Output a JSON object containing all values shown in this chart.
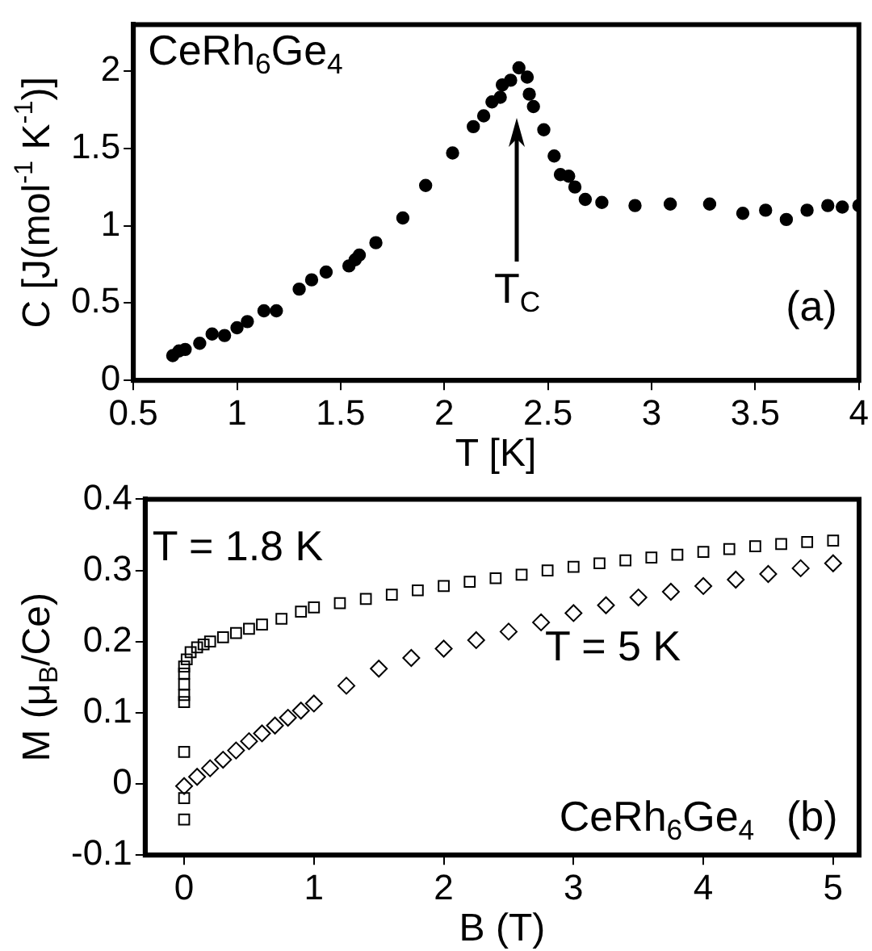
{
  "chart_data": [
    {
      "type": "scatter",
      "xlabel": "T [K]",
      "ylabel": "C [J(mol$^{-1}$ K$^{-1}$)]",
      "xlim": [
        0.5,
        4
      ],
      "xticks": [
        0.5,
        1,
        1.5,
        2,
        2.5,
        3,
        3.5,
        4
      ],
      "ylim": [
        0,
        2.3
      ],
      "yticks": [
        0,
        0.5,
        1,
        1.5,
        2
      ],
      "grid": false,
      "legend": false,
      "marker": "circle",
      "annotations": [
        "CeRh$_{6}$Ge$_{4}$",
        "(a)",
        "T$_{C}$"
      ],
      "series": [
        {
          "color": "#000000",
          "x": [
            0.69,
            0.72,
            0.75,
            0.82,
            0.88,
            0.94,
            1.0,
            1.05,
            1.13,
            1.19,
            1.3,
            1.36,
            1.43,
            1.54,
            1.57,
            1.59,
            1.67,
            1.8,
            1.91,
            2.04,
            2.14,
            2.19,
            2.23,
            2.27,
            2.28,
            2.32,
            2.36,
            2.4,
            2.41,
            2.43,
            2.48,
            2.53,
            2.56,
            2.6,
            2.63,
            2.68,
            2.76,
            2.92,
            3.09,
            3.28,
            3.44,
            3.55,
            3.65,
            3.75,
            3.85,
            3.92,
            4.0
          ],
          "values": [
            0.16,
            0.19,
            0.2,
            0.24,
            0.3,
            0.29,
            0.34,
            0.38,
            0.45,
            0.45,
            0.59,
            0.65,
            0.7,
            0.74,
            0.78,
            0.81,
            0.89,
            1.05,
            1.26,
            1.47,
            1.64,
            1.71,
            1.8,
            1.83,
            1.91,
            1.94,
            2.02,
            1.96,
            1.85,
            1.77,
            1.62,
            1.45,
            1.33,
            1.32,
            1.25,
            1.17,
            1.15,
            1.13,
            1.14,
            1.14,
            1.08,
            1.1,
            1.04,
            1.1,
            1.13,
            1.12,
            1.13
          ]
        }
      ]
    },
    {
      "type": "scatter",
      "xlabel": "B (T)",
      "ylabel": "M (μ$_{B}$/Ce)",
      "xlim": [
        -0.3,
        5.2
      ],
      "xticks": [
        0,
        1,
        2,
        3,
        4,
        5
      ],
      "ylim": [
        -0.1,
        0.4
      ],
      "yticks": [
        -0.1,
        0,
        0.1,
        0.2,
        0.3,
        0.4
      ],
      "grid": false,
      "legend": false,
      "annotations": [
        "CeRh$_{6}$Ge$_{4}$",
        "(b)"
      ],
      "series": [
        {
          "name": "T = 1.8 K",
          "color": "#000000",
          "marker": "square",
          "x": [
            0,
            0,
            0,
            0,
            0,
            0,
            0,
            0,
            0.02,
            0.05,
            0.1,
            0.15,
            0.2,
            0.3,
            0.4,
            0.5,
            0.6,
            0.75,
            0.9,
            1,
            1.2,
            1.4,
            1.6,
            1.8,
            2,
            2.2,
            2.4,
            2.6,
            2.8,
            3,
            3.2,
            3.4,
            3.6,
            3.8,
            4,
            4.2,
            4.4,
            4.6,
            4.8,
            5
          ],
          "values": [
            -0.05,
            -0.02,
            0.045,
            0.115,
            0.125,
            0.14,
            0.155,
            0.165,
            0.175,
            0.185,
            0.192,
            0.196,
            0.2,
            0.206,
            0.212,
            0.218,
            0.224,
            0.232,
            0.242,
            0.248,
            0.254,
            0.26,
            0.266,
            0.272,
            0.278,
            0.284,
            0.289,
            0.294,
            0.3,
            0.305,
            0.31,
            0.314,
            0.318,
            0.322,
            0.326,
            0.33,
            0.334,
            0.337,
            0.34,
            0.342
          ]
        },
        {
          "name": "T = 5 K",
          "color": "#000000",
          "marker": "diamond",
          "x": [
            0,
            0.1,
            0.2,
            0.3,
            0.4,
            0.5,
            0.6,
            0.7,
            0.8,
            0.9,
            1,
            1.25,
            1.5,
            1.75,
            2,
            2.25,
            2.5,
            2.75,
            3,
            3.25,
            3.5,
            3.75,
            4,
            4.25,
            4.5,
            4.75,
            5
          ],
          "values": [
            -0.003,
            0.01,
            0.022,
            0.034,
            0.047,
            0.06,
            0.071,
            0.082,
            0.093,
            0.103,
            0.113,
            0.138,
            0.162,
            0.177,
            0.19,
            0.202,
            0.214,
            0.227,
            0.24,
            0.251,
            0.262,
            0.27,
            0.278,
            0.287,
            0.295,
            0.303,
            0.31
          ]
        }
      ]
    }
  ]
}
